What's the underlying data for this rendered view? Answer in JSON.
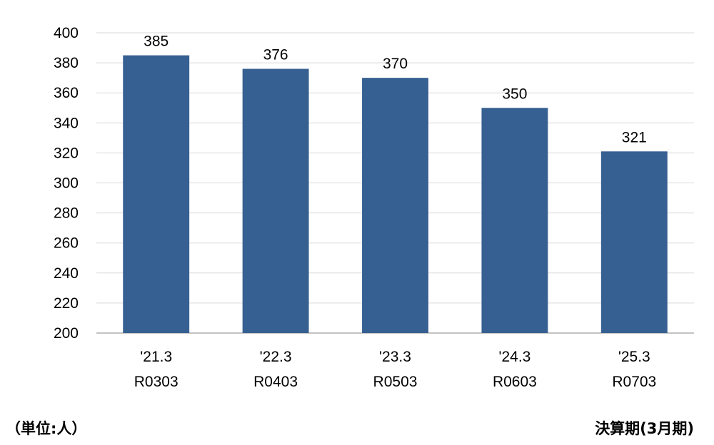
{
  "chart_data": {
    "type": "bar",
    "categories": [
      [
        "'21.3",
        "R0303"
      ],
      [
        "'22.3",
        "R0403"
      ],
      [
        "'23.3",
        "R0503"
      ],
      [
        "'24.3",
        "R0603"
      ],
      [
        "'25.3",
        "R0703"
      ]
    ],
    "values": [
      385,
      376,
      370,
      350,
      321
    ],
    "ylim": [
      200,
      400
    ],
    "yticks": [
      200,
      220,
      240,
      260,
      280,
      300,
      320,
      340,
      360,
      380,
      400
    ],
    "grid": true,
    "bar_color": "#376092",
    "data_labels": true
  },
  "notes": {
    "unit": "（単位:人）",
    "period": "決算期(3月期)"
  }
}
